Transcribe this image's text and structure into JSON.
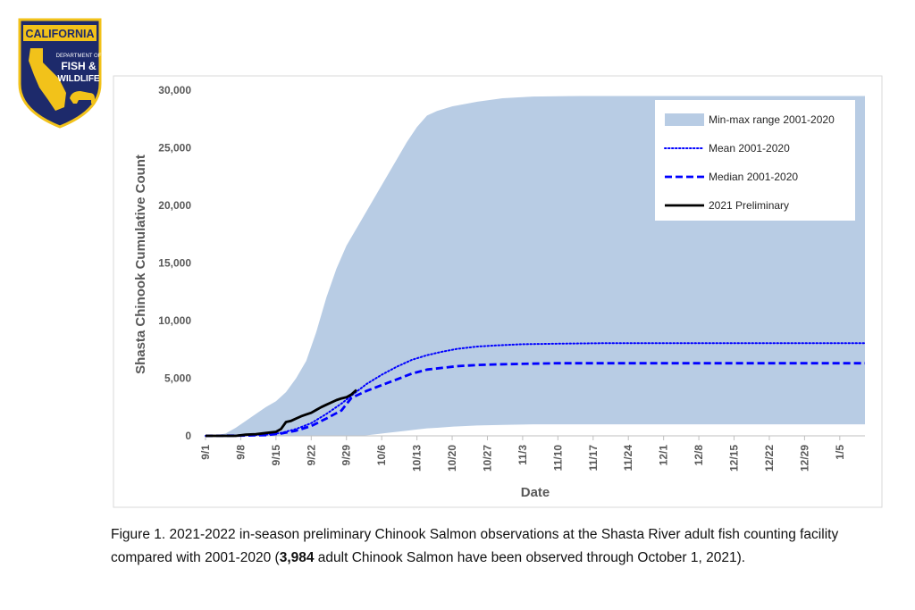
{
  "logo": {
    "line1": "CALIFORNIA",
    "line2": "DEPARTMENT OF",
    "line3": "FISH &",
    "line4": "WILDLIFE",
    "colors": {
      "navy": "#1d2a6b",
      "gold": "#f2c21a"
    }
  },
  "chart_data": {
    "type": "area",
    "xlabel": "Date",
    "ylabel": "Shasta Chinook Cumulative Count",
    "ylim": [
      0,
      30000
    ],
    "yticks": [
      0,
      5000,
      10000,
      15000,
      20000,
      25000,
      30000
    ],
    "ytick_labels": [
      "0",
      "5,000",
      "10,000",
      "15,000",
      "20,000",
      "25,000",
      "30,000"
    ],
    "xlim": [
      "9/1",
      "1/10"
    ],
    "xtick_labels": [
      "9/1",
      "9/8",
      "9/15",
      "9/22",
      "9/29",
      "10/6",
      "10/13",
      "10/20",
      "10/27",
      "11/3",
      "11/10",
      "11/17",
      "11/24",
      "12/1",
      "12/8",
      "12/15",
      "12/22",
      "12/29",
      "1/5"
    ],
    "legend_position": "top-right",
    "grid": false,
    "series": [
      {
        "name": "Min-max range 2001-2020",
        "kind": "band",
        "color": "#b8cce4",
        "x": [
          "9/1",
          "9/3",
          "9/5",
          "9/7",
          "9/9",
          "9/11",
          "9/13",
          "9/15",
          "9/17",
          "9/19",
          "9/21",
          "9/23",
          "9/25",
          "9/27",
          "9/29",
          "10/1",
          "10/3",
          "10/5",
          "10/7",
          "10/9",
          "10/11",
          "10/13",
          "10/15",
          "10/17",
          "10/20",
          "10/25",
          "10/30",
          "11/5",
          "11/15",
          "12/1",
          "12/15",
          "1/1",
          "1/10"
        ],
        "max": [
          0,
          50,
          200,
          700,
          1300,
          1900,
          2500,
          3000,
          3800,
          5000,
          6500,
          9000,
          12000,
          14500,
          16500,
          18000,
          19500,
          21000,
          22500,
          24000,
          25500,
          26800,
          27800,
          28200,
          28600,
          29000,
          29300,
          29450,
          29500,
          29500,
          29500,
          29500,
          29500
        ],
        "min": [
          0,
          0,
          0,
          0,
          0,
          0,
          0,
          0,
          0,
          0,
          0,
          0,
          0,
          0,
          0,
          0,
          50,
          150,
          250,
          350,
          450,
          550,
          650,
          700,
          800,
          900,
          950,
          1000,
          1000,
          1000,
          1000,
          1000,
          1000
        ]
      },
      {
        "name": "Mean 2001-2020",
        "kind": "line",
        "style": "dotted",
        "color": "#0000ff",
        "x": [
          "9/1",
          "9/8",
          "9/13",
          "9/16",
          "9/19",
          "9/22",
          "9/25",
          "9/28",
          "9/30",
          "10/3",
          "10/6",
          "10/9",
          "10/12",
          "10/15",
          "10/18",
          "10/21",
          "10/25",
          "10/29",
          "11/3",
          "11/10",
          "11/20",
          "12/1",
          "1/1",
          "1/10"
        ],
        "y": [
          0,
          30,
          100,
          250,
          600,
          1100,
          1900,
          2800,
          3500,
          4500,
          5300,
          6000,
          6600,
          7000,
          7300,
          7550,
          7750,
          7850,
          7950,
          8000,
          8050,
          8050,
          8050,
          8050
        ]
      },
      {
        "name": "Median 2001-2020",
        "kind": "line",
        "style": "dashed",
        "color": "#0000ff",
        "x": [
          "9/1",
          "9/8",
          "9/13",
          "9/16",
          "9/19",
          "9/22",
          "9/25",
          "9/28",
          "9/30",
          "10/3",
          "10/6",
          "10/9",
          "10/12",
          "10/15",
          "10/18",
          "10/21",
          "10/25",
          "10/29",
          "11/3",
          "11/10",
          "11/20",
          "12/1",
          "1/1",
          "1/10"
        ],
        "y": [
          0,
          20,
          60,
          200,
          450,
          850,
          1500,
          2200,
          3300,
          3900,
          4400,
          4900,
          5400,
          5750,
          5900,
          6050,
          6150,
          6200,
          6250,
          6300,
          6300,
          6300,
          6300,
          6300
        ]
      },
      {
        "name": "2021 Preliminary",
        "kind": "line",
        "style": "solid",
        "color": "#000000",
        "x": [
          "9/1",
          "9/3",
          "9/5",
          "9/7",
          "9/9",
          "9/11",
          "9/13",
          "9/15",
          "9/16",
          "9/17",
          "9/18",
          "9/19",
          "9/20",
          "9/21",
          "9/22",
          "9/23",
          "9/24",
          "9/25",
          "9/26",
          "9/27",
          "9/28",
          "9/29",
          "9/30",
          "10/1"
        ],
        "y": [
          0,
          0,
          0,
          0,
          100,
          150,
          250,
          350,
          600,
          1200,
          1300,
          1500,
          1700,
          1850,
          2000,
          2250,
          2500,
          2700,
          2900,
          3100,
          3250,
          3350,
          3600,
          3984
        ]
      }
    ]
  },
  "caption": {
    "text_before": "Figure 1.  2021-2022 in-season preliminary Chinook Salmon observations at the Shasta River adult fish counting facility compared with 2001-2020 (",
    "bold": "3,984",
    "text_after": " adult Chinook Salmon have been observed through October 1, 2021)."
  }
}
